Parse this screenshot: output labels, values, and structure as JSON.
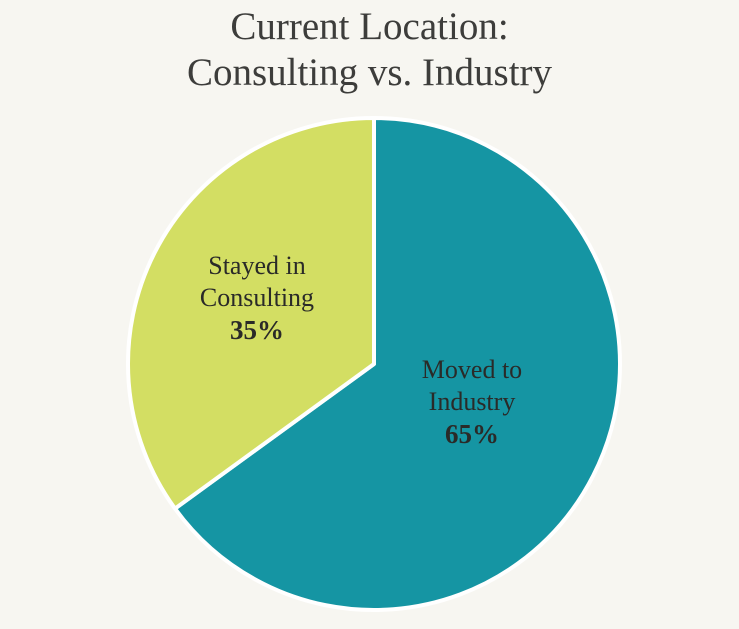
{
  "chart_data": {
    "type": "pie",
    "title": [
      "Current Location:",
      "Consulting vs. Industry"
    ],
    "slices": [
      {
        "label_lines": [
          "Moved to",
          "Industry"
        ],
        "value": 65,
        "value_label": "65%",
        "color": "#1595a3"
      },
      {
        "label_lines": [
          "Stayed in",
          "Consulting"
        ],
        "value": 35,
        "value_label": "35%",
        "color": "#d3de63"
      }
    ],
    "start_angle": "12 o'clock",
    "direction": "clockwise",
    "separator_color": "#ffffff"
  }
}
